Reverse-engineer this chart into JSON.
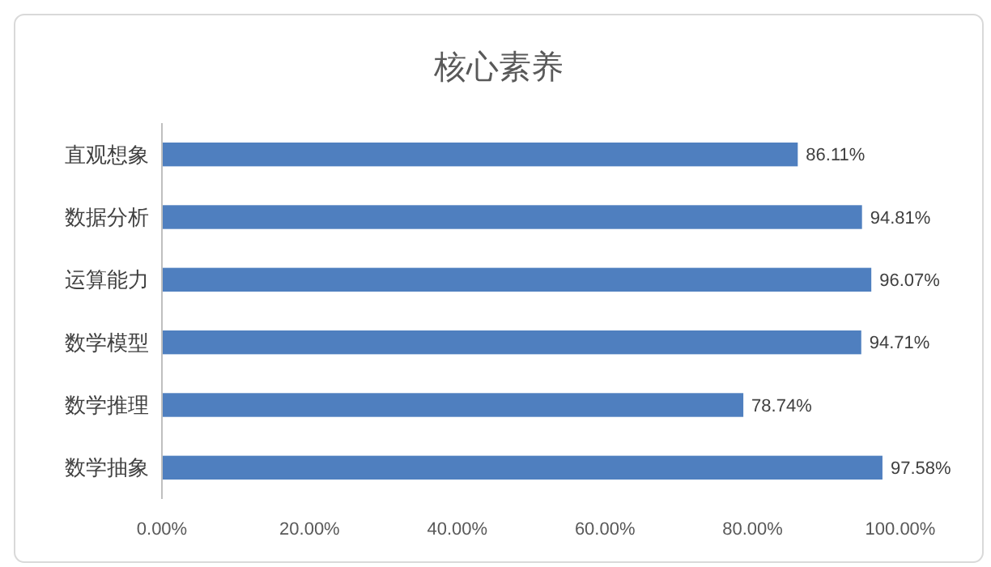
{
  "chart_data": {
    "type": "bar",
    "orientation": "horizontal",
    "title": "核心素养",
    "categories": [
      "直观想象",
      "数据分析",
      "运算能力",
      "数学模型",
      "数学推理",
      "数学抽象"
    ],
    "values": [
      86.11,
      94.81,
      96.07,
      94.71,
      78.74,
      97.58
    ],
    "value_labels": [
      "86.11%",
      "94.81%",
      "96.07%",
      "94.71%",
      "78.74%",
      "97.58%"
    ],
    "color": "#4f7fbf",
    "xlim": [
      0,
      100
    ],
    "xticks": [
      {
        "value": 0,
        "label": "0.00%"
      },
      {
        "value": 20,
        "label": "20.00%"
      },
      {
        "value": 40,
        "label": "40.00%"
      },
      {
        "value": 60,
        "label": "60.00%"
      },
      {
        "value": 80,
        "label": "80.00%"
      },
      {
        "value": 100,
        "label": "100.00%"
      }
    ],
    "grid": false
  }
}
